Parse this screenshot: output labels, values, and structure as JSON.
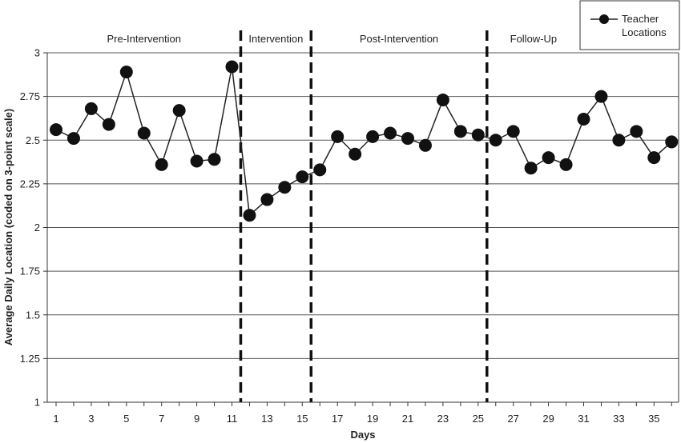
{
  "chart_data": {
    "type": "line",
    "title": "",
    "xlabel": "Days",
    "ylabel": "Average Daily Location (coded on 3-point scale)",
    "ylim": [
      1,
      3
    ],
    "xlim": [
      1,
      36
    ],
    "y_ticks": [
      "1",
      "1.25",
      "1.5",
      "1.75",
      "2",
      "2.25",
      "2.5",
      "2.75",
      "3"
    ],
    "x_ticks": [
      "1",
      "3",
      "5",
      "7",
      "9",
      "11",
      "13",
      "15",
      "17",
      "19",
      "21",
      "23",
      "25",
      "27",
      "29",
      "31",
      "33",
      "35"
    ],
    "grid": true,
    "legend": {
      "position": "top-right",
      "label_line1": "Teacher",
      "label_line2": "Locations"
    },
    "phases": [
      {
        "label": "Pre-Intervention",
        "start": 1,
        "end": 11
      },
      {
        "label": "Intervention",
        "start": 12,
        "end": 15
      },
      {
        "label": "Post-Intervention",
        "start": 16,
        "end": 25
      },
      {
        "label": "Follow-Up",
        "start": 26,
        "end": 36
      }
    ],
    "phase_lines": [
      11.5,
      15.5,
      25.5
    ],
    "series": [
      {
        "name": "Teacher Locations",
        "x": [
          1,
          2,
          3,
          4,
          5,
          6,
          7,
          8,
          9,
          10,
          11,
          12,
          13,
          14,
          15,
          16,
          17,
          18,
          19,
          20,
          21,
          22,
          23,
          24,
          25,
          26,
          27,
          28,
          29,
          30,
          31,
          32,
          33,
          34,
          35,
          36
        ],
        "values": [
          2.56,
          2.51,
          2.68,
          2.59,
          2.89,
          2.54,
          2.36,
          2.67,
          2.38,
          2.39,
          2.92,
          2.07,
          2.16,
          2.23,
          2.29,
          2.33,
          2.52,
          2.42,
          2.52,
          2.54,
          2.51,
          2.47,
          2.73,
          2.55,
          2.53,
          2.5,
          2.55,
          2.34,
          2.4,
          2.36,
          2.62,
          2.75,
          2.5,
          2.55,
          2.4,
          2.49
        ]
      }
    ]
  }
}
